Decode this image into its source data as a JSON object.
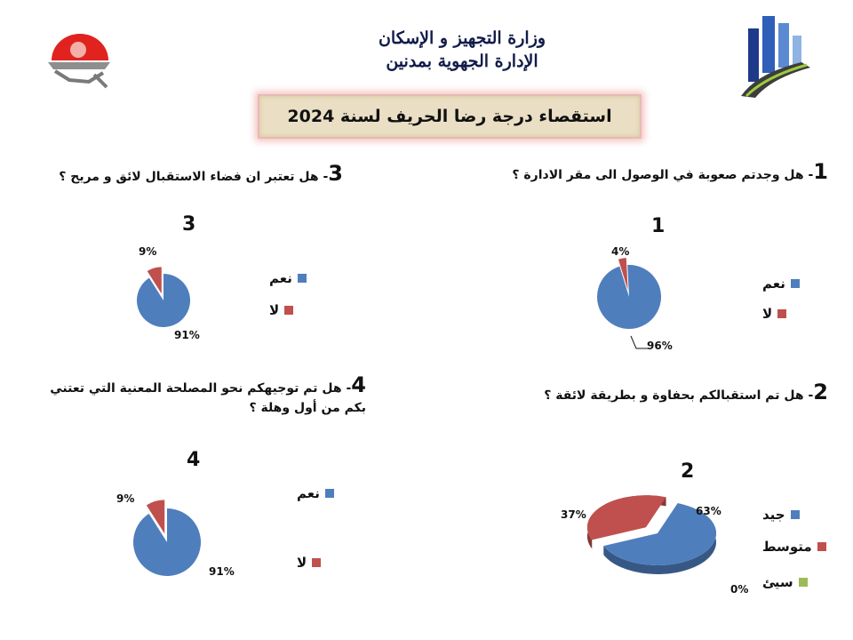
{
  "header": {
    "line1": "وزارة التجهيز و الإسكان",
    "line2": "الإدارة الجهوية بمدنين",
    "title": "استقصاء درجة رضا الحريف لسنة 2024"
  },
  "colors": {
    "blue": "#4f7ebd",
    "red": "#c0504d",
    "green": "#9bbb59"
  },
  "questions": {
    "q1": {
      "num": "1",
      "text": "- هل وجدتم صعوبة في الوصول الى مقر الادارة ؟"
    },
    "q2": {
      "num": "2",
      "text": "- هل تم استقبالكم بحفاوة و بطريقة لائقة ؟"
    },
    "q3": {
      "num": "3",
      "text": "- هل تعتبر ان فضاء الاستقبال لائق و مريح ؟"
    },
    "q4": {
      "num": "4",
      "text": "- هل تم توجيهكم نحو المصلحة المعنية التي تعتني بكم من أول وهلة ؟"
    }
  },
  "chart_data": [
    {
      "id": "1",
      "type": "pie",
      "title": "1",
      "categories": [
        "نعم",
        "لا"
      ],
      "values": [
        96,
        4
      ],
      "labels": [
        "96%",
        "4%"
      ],
      "legend": "right"
    },
    {
      "id": "2",
      "type": "pie",
      "title": "2",
      "categories": [
        "جيد",
        "متوسط",
        "سيئ"
      ],
      "values": [
        63,
        37,
        0
      ],
      "labels": [
        "63%",
        "37%",
        "0%"
      ],
      "legend": "right"
    },
    {
      "id": "3",
      "type": "pie",
      "title": "3",
      "categories": [
        "نعم",
        "لا"
      ],
      "values": [
        91,
        9
      ],
      "labels": [
        "91%",
        "9%"
      ],
      "legend": "right"
    },
    {
      "id": "4",
      "type": "pie",
      "title": "4",
      "categories": [
        "نعم",
        "لا"
      ],
      "values": [
        91,
        9
      ],
      "labels": [
        "91%",
        "9%"
      ],
      "legend": "right"
    }
  ]
}
